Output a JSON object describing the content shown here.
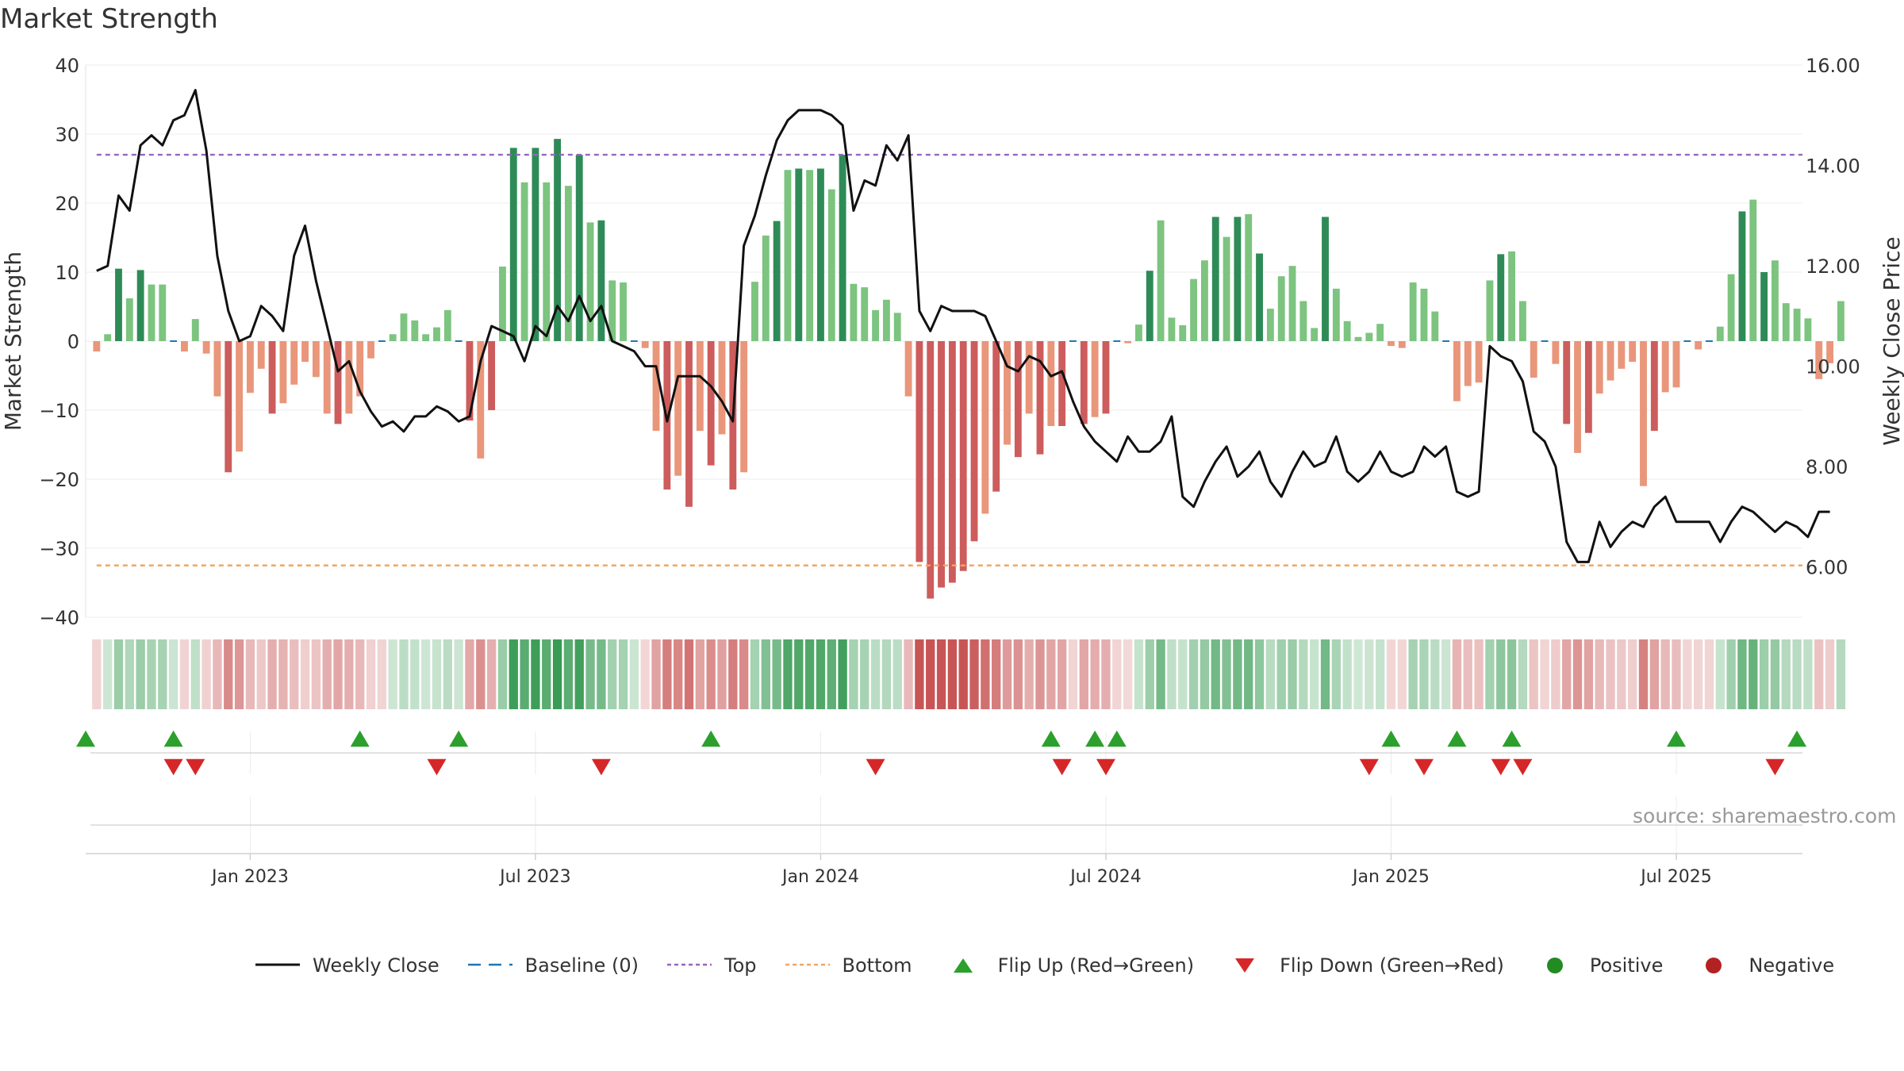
{
  "title": "Market Strength",
  "source": "source: sharemaestro.com",
  "colors": {
    "strong_pos": "#2e8b57",
    "weak_pos": "#7cc47f",
    "strong_neg": "#cd5c5c",
    "weak_neg": "#e9967a",
    "price_line": "#111111",
    "baseline": "#1f77b4",
    "top": "#9467bd",
    "bottom": "#f4a460",
    "flip_up": "#2ca02c",
    "flip_down": "#d62728",
    "positive": "#228b22",
    "negative": "#b22222"
  },
  "legend": [
    {
      "key": "line",
      "label": "Weekly Close"
    },
    {
      "key": "baseline",
      "label": "Baseline (0)"
    },
    {
      "key": "top",
      "label": "Top"
    },
    {
      "key": "bottom",
      "label": "Bottom"
    },
    {
      "key": "up",
      "label": "Flip Up (Red→Green)"
    },
    {
      "key": "down",
      "label": "Flip Down (Green→Red)"
    },
    {
      "key": "pos",
      "label": "Positive"
    },
    {
      "key": "neg",
      "label": "Negative"
    }
  ],
  "chart_data": {
    "type": "bar",
    "title": "Market Strength",
    "ylabel": "Market Strength",
    "y2label": "Weekly Close Price",
    "ylim": [
      -40,
      40
    ],
    "y_ticks": [
      -40,
      -30,
      -20,
      -10,
      0,
      10,
      20,
      30,
      40
    ],
    "y_tick_labels": [
      "−40",
      "−30",
      "−20",
      "−10",
      "0",
      "10",
      "20",
      "30",
      "40"
    ],
    "y2lim": [
      5.0,
      16.0
    ],
    "y2_ticks": [
      6,
      8,
      10,
      12,
      14,
      16
    ],
    "y2_tick_labels": [
      "6.00",
      "8.00",
      "10.00",
      "12.00",
      "14.00",
      "16.00"
    ],
    "x_range": [
      0,
      156.5
    ],
    "x_ticks": [
      15,
      41,
      67,
      93,
      119,
      145
    ],
    "x_tick_labels": [
      "Jan 2023",
      "Jul 2023",
      "Jan 2024",
      "Jul 2024",
      "Jan 2025",
      "Jul 2025"
    ],
    "top_line": 27,
    "bottom_line": -32.5,
    "series": [
      {
        "name": "Market Strength",
        "values": [
          -1.5,
          1,
          10.5,
          6.2,
          10.3,
          8.2,
          8.2,
          0,
          -1.5,
          3.2,
          -1.8,
          -8,
          -19,
          -16,
          -7.5,
          -4,
          -10.5,
          -9,
          -6.3,
          -3,
          -5.2,
          -10.5,
          -12,
          -10.5,
          -8,
          -2.5,
          0,
          1,
          4,
          3,
          1,
          2,
          4.5,
          0,
          -11.5,
          -17,
          -10,
          10.8,
          28,
          23,
          28,
          23,
          29.3,
          22.5,
          27,
          17.2,
          17.5,
          8.8,
          8.5,
          0,
          -1,
          -13,
          -21.5,
          -19.5,
          -24,
          -13,
          -18,
          -13.5,
          -21.5,
          -19,
          8.6,
          15.3,
          17.4,
          24.8,
          25,
          24.8,
          25,
          22,
          27,
          8.3,
          7.8,
          4.5,
          6,
          4.1,
          -8,
          -32,
          -37.3,
          -35.7,
          -35,
          -33.3,
          -29,
          -25,
          -21.8,
          -15,
          -16.8,
          -10.5,
          -16.4,
          -12.3,
          -12.3,
          0,
          -12,
          -11,
          -10.5,
          0,
          -0.3,
          2.4,
          10.2,
          17.5,
          3.4,
          2.3,
          9,
          11.7,
          18,
          15.1,
          18,
          18.4,
          12.7,
          4.7,
          9.4,
          10.9,
          5.8,
          1.9,
          18,
          7.6,
          2.9,
          0.6,
          1.2,
          2.5,
          -0.7,
          -1,
          8.5,
          7.6,
          4.3,
          0,
          -8.7,
          -6.5,
          -6,
          8.8,
          12.6,
          13,
          5.8,
          -5.3,
          0,
          -3.3,
          -12,
          -16.2,
          -13.3,
          -7.6,
          -5.7,
          -4,
          -3,
          -21,
          -13,
          -7.4,
          -6.7,
          0,
          -1.2,
          0,
          2.1,
          9.7,
          18.8,
          20.5,
          10,
          11.7,
          5.5,
          4.7,
          3.3,
          -5.5,
          -3.2,
          5.8
        ]
      },
      {
        "name": "Weekly Close",
        "axis": "right",
        "values": [
          11.9,
          12.0,
          13.4,
          13.1,
          14.4,
          14.6,
          14.4,
          14.9,
          15.0,
          15.5,
          14.3,
          12.2,
          11.1,
          10.5,
          10.6,
          11.2,
          11.0,
          10.7,
          12.2,
          12.8,
          11.7,
          10.8,
          9.9,
          10.1,
          9.5,
          9.1,
          8.8,
          8.9,
          8.7,
          9.0,
          9.0,
          9.2,
          9.1,
          8.9,
          9.0,
          10.1,
          10.8,
          10.7,
          10.6,
          10.1,
          10.8,
          10.6,
          11.2,
          10.9,
          11.4,
          10.9,
          11.2,
          10.5,
          10.4,
          10.3,
          10.0,
          10.0,
          8.9,
          9.8,
          9.8,
          9.8,
          9.6,
          9.3,
          8.9,
          12.4,
          13.0,
          13.8,
          14.5,
          14.9,
          15.1,
          15.1,
          15.1,
          15.0,
          14.8,
          13.1,
          13.7,
          13.6,
          14.4,
          14.1,
          14.6,
          11.1,
          10.7,
          11.2,
          11.1,
          11.1,
          11.1,
          11.0,
          10.5,
          10.0,
          9.9,
          10.2,
          10.1,
          9.8,
          9.9,
          9.3,
          8.8,
          8.5,
          8.3,
          8.1,
          8.6,
          8.3,
          8.3,
          8.5,
          9.0,
          7.4,
          7.2,
          7.7,
          8.1,
          8.4,
          7.8,
          8.0,
          8.3,
          7.7,
          7.4,
          7.9,
          8.3,
          8.0,
          8.1,
          8.6,
          7.9,
          7.7,
          7.9,
          8.3,
          7.9,
          7.8,
          7.9,
          8.4,
          8.2,
          8.4,
          7.5,
          7.4,
          7.5,
          10.4,
          10.2,
          10.1,
          9.7,
          8.7,
          8.5,
          8.0,
          6.5,
          6.1,
          6.1,
          6.9,
          6.4,
          6.7,
          6.9,
          6.8,
          7.2,
          7.4,
          6.9,
          6.9,
          6.9,
          6.9,
          6.5,
          6.9,
          7.2,
          7.1,
          6.9,
          6.7,
          6.9,
          6.8,
          6.6,
          7.1,
          7.1
        ]
      }
    ],
    "flip_up_weeks": [
      0,
      8,
      25,
      34,
      57,
      88,
      92,
      94,
      119,
      125,
      130,
      145,
      156
    ],
    "flip_down_weeks": [
      8,
      10,
      32,
      47,
      72,
      89,
      93,
      117,
      122,
      129,
      131,
      154
    ]
  }
}
